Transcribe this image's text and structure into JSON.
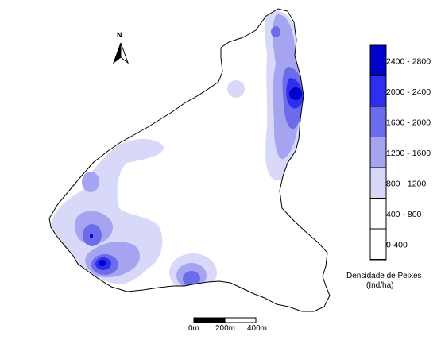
{
  "north_arrow": {
    "label": "N",
    "icon": "north-arrow-icon"
  },
  "legend": {
    "title_line1": "Densidade de Peixes",
    "title_line2": "(Ind/ha)",
    "classes": [
      {
        "label": "2400 - 2800",
        "color": "#0000cc"
      },
      {
        "label": "2000 - 2400",
        "color": "#2e2eee"
      },
      {
        "label": "1600 - 2000",
        "color": "#6c6cea"
      },
      {
        "label": "1200 - 1600",
        "color": "#a4a4f0"
      },
      {
        "label": "800 - 1200",
        "color": "#d8d8f8"
      },
      {
        "label": "400 - 800",
        "color": "#ffffff"
      },
      {
        "label": "0-400",
        "color": "#ffffff"
      }
    ]
  },
  "scale_bar": {
    "labels": [
      "0m",
      "200m",
      "400m"
    ]
  },
  "colors": {
    "outline": "#000000",
    "background": "#ffffff"
  }
}
